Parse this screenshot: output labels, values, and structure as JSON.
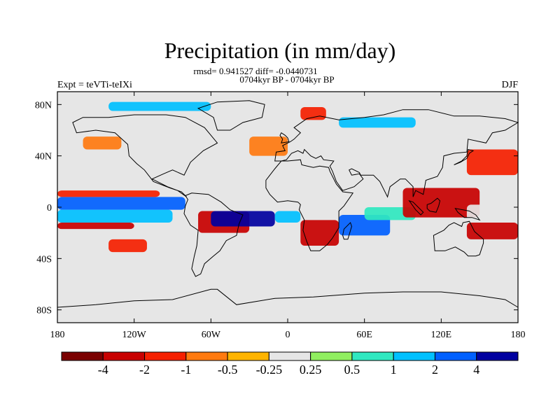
{
  "title": "Precipitation (in mm/day)",
  "stats_line": "rmsd= 0.941527 diff= -0.0440731",
  "period_line": "0704kyr BP - 0704kyr BP",
  "left_tag": "Expt = teVTi-teIXi",
  "right_tag": "DJF",
  "map": {
    "projection": "cylindrical-equidistant",
    "lon_range": [
      -180,
      180
    ],
    "lat_range": [
      -90,
      90
    ],
    "lon_ticks": [
      {
        "value": -180,
        "label": "180"
      },
      {
        "value": -120,
        "label": "120W"
      },
      {
        "value": -60,
        "label": "60W"
      },
      {
        "value": 0,
        "label": "0"
      },
      {
        "value": 60,
        "label": "60E"
      },
      {
        "value": 120,
        "label": "120E"
      },
      {
        "value": 180,
        "label": "180"
      }
    ],
    "lat_ticks": [
      {
        "value": 80,
        "label": "80N"
      },
      {
        "value": 40,
        "label": "40N"
      },
      {
        "value": 0,
        "label": "0"
      },
      {
        "value": -40,
        "label": "40S"
      },
      {
        "value": -80,
        "label": "80S"
      }
    ],
    "background_color": "#e6e6e6",
    "features": [
      {
        "lon": [
          -180,
          -80
        ],
        "lat": [
          -2,
          8
        ],
        "level": 9
      },
      {
        "lon": [
          -180,
          -90
        ],
        "lat": [
          -12,
          -2
        ],
        "level": 8
      },
      {
        "lon": [
          -180,
          -100
        ],
        "lat": [
          8,
          13
        ],
        "level": 2
      },
      {
        "lon": [
          -180,
          -120
        ],
        "lat": [
          -17,
          -12
        ],
        "level": 1
      },
      {
        "lon": [
          -70,
          -30
        ],
        "lat": [
          -20,
          -3
        ],
        "level": 1
      },
      {
        "lon": [
          -60,
          -10
        ],
        "lat": [
          -15,
          -3
        ],
        "level": 10
      },
      {
        "lon": [
          -10,
          10
        ],
        "lat": [
          -12,
          -3
        ],
        "level": 8
      },
      {
        "lon": [
          10,
          40
        ],
        "lat": [
          -30,
          -10
        ],
        "level": 1
      },
      {
        "lon": [
          40,
          80
        ],
        "lat": [
          -22,
          -6
        ],
        "level": 9
      },
      {
        "lon": [
          60,
          100
        ],
        "lat": [
          -10,
          0
        ],
        "level": 7
      },
      {
        "lon": [
          90,
          150
        ],
        "lat": [
          -8,
          15
        ],
        "level": 1
      },
      {
        "lon": [
          140,
          180
        ],
        "lat": [
          -10,
          2
        ],
        "level": 11
      },
      {
        "lon": [
          140,
          180
        ],
        "lat": [
          -25,
          -12
        ],
        "level": 1
      },
      {
        "lon": [
          140,
          180
        ],
        "lat": [
          25,
          45
        ],
        "level": 2
      },
      {
        "lon": [
          -140,
          -110
        ],
        "lat": [
          -35,
          -25
        ],
        "level": 2
      },
      {
        "lon": [
          -30,
          0
        ],
        "lat": [
          40,
          55
        ],
        "level": 3
      },
      {
        "lon": [
          10,
          30
        ],
        "lat": [
          68,
          78
        ],
        "level": 2
      },
      {
        "lon": [
          -140,
          -60
        ],
        "lat": [
          75,
          82
        ],
        "level": 8
      },
      {
        "lon": [
          40,
          100
        ],
        "lat": [
          62,
          70
        ],
        "level": 8
      },
      {
        "lon": [
          -160,
          -130
        ],
        "lat": [
          45,
          55
        ],
        "level": 3
      }
    ]
  },
  "colorbar": {
    "colors": [
      "#7a0000",
      "#c80000",
      "#f52000",
      "#ff7a10",
      "#ffb400",
      "#e6e6e6",
      "#90ee60",
      "#30e8c0",
      "#00c0ff",
      "#0060ff",
      "#0000a0"
    ],
    "labels": [
      "-4",
      "-2",
      "-1",
      "-0.5",
      "-0.25",
      "0.25",
      "0.5",
      "1",
      "2",
      "4"
    ]
  }
}
